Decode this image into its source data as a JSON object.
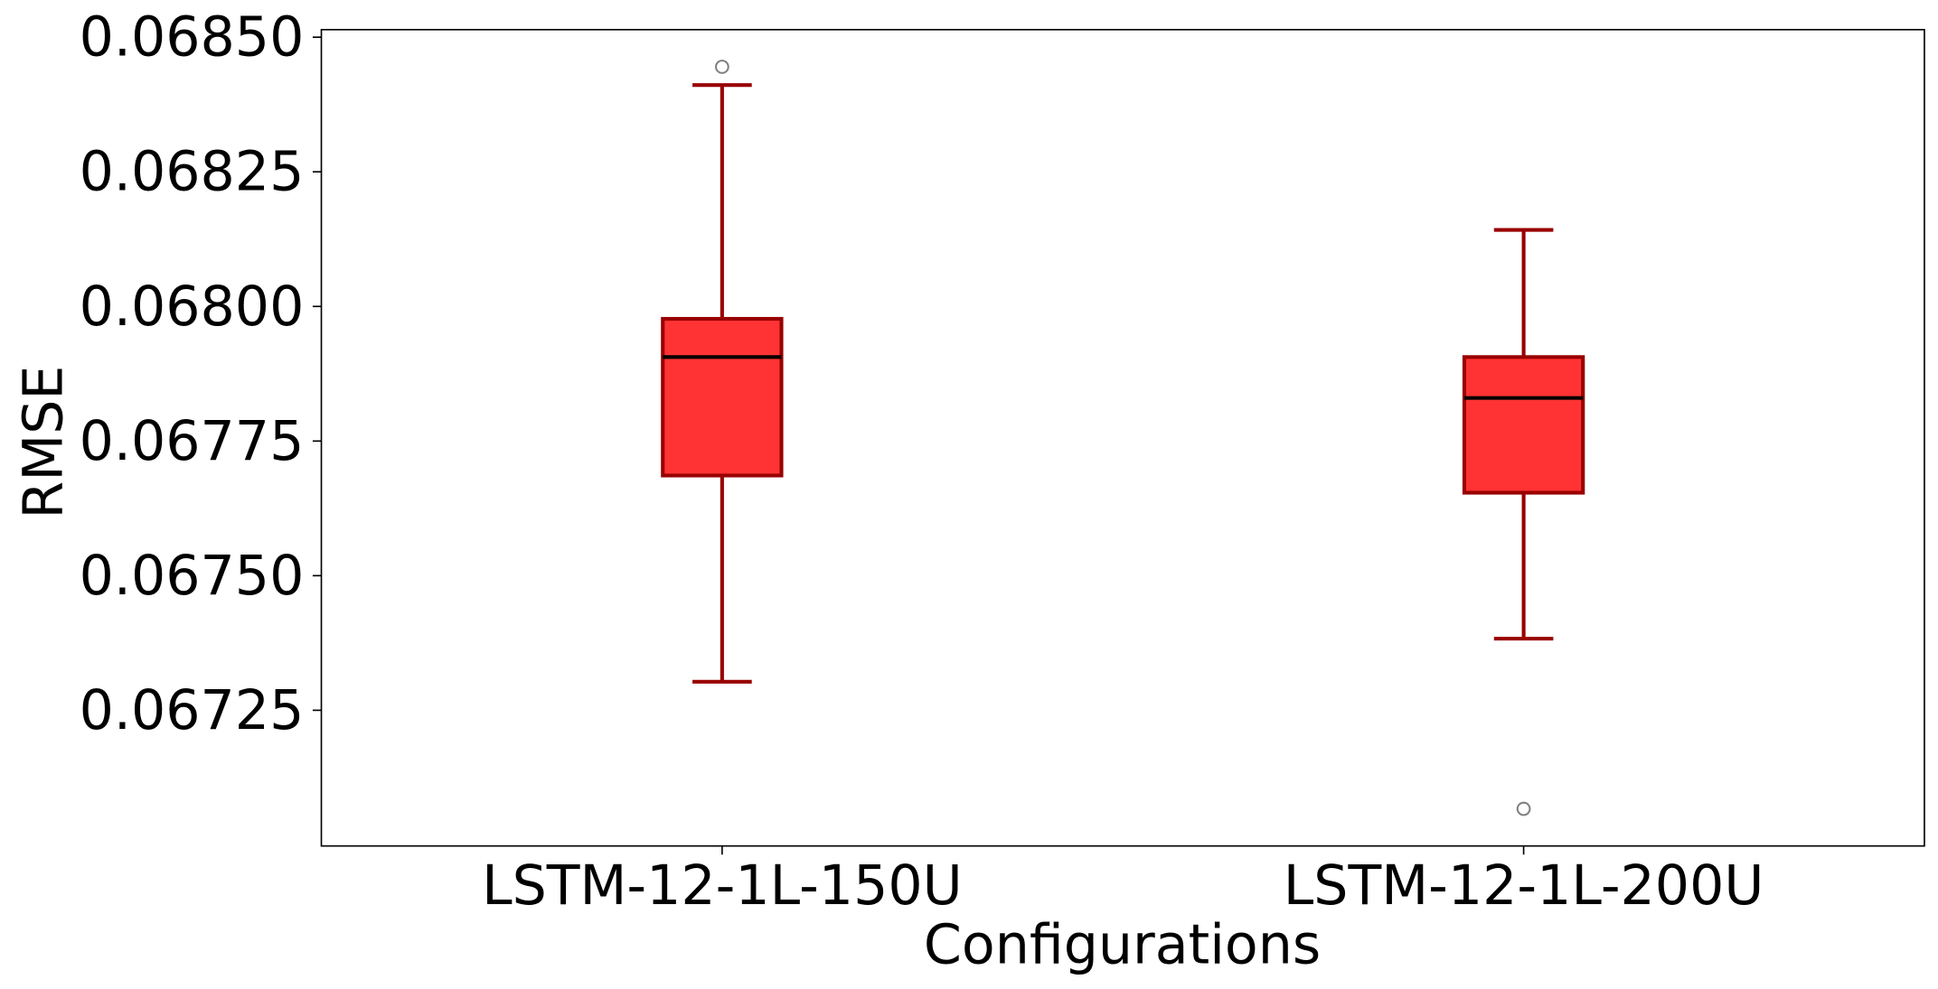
{
  "chart_data": {
    "type": "box",
    "xlabel": "Configurations",
    "ylabel": "RMSE",
    "categories": [
      "LSTM-12-1L-150U",
      "LSTM-12-1L-200U"
    ],
    "boxes": [
      {
        "whislo": 0.067303,
        "q1": 0.067686,
        "med": 0.067906,
        "q3": 0.067977,
        "whishi": 0.068411,
        "fliers": [
          0.068445
        ]
      },
      {
        "whislo": 0.067383,
        "q1": 0.067654,
        "med": 0.06783,
        "q3": 0.067906,
        "whishi": 0.068142,
        "fliers": [
          0.067067
        ]
      }
    ],
    "color": "#ff3333",
    "edge_color": "#990000",
    "median_color": "#000000",
    "flier_color": "#808080",
    "ylim": [
      0.066998,
      0.068514
    ],
    "yticks": [
      {
        "value": 0.0685,
        "label": "0.06850"
      },
      0.06825,
      {
        "value": 0.068,
        "label": "0.06800"
      },
      0.06775,
      {
        "value": 0.0675,
        "label": "0.06750"
      },
      0.06725
    ],
    "grid": false
  }
}
